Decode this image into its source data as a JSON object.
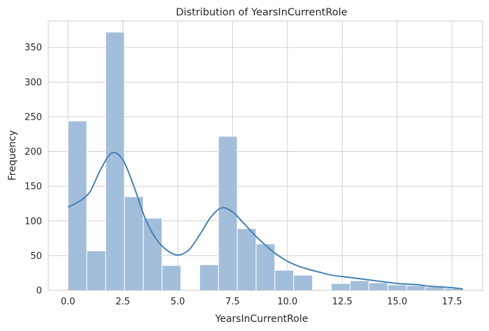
{
  "chart_data": {
    "type": "bar",
    "title": "Distribution of YearsInCurrentRole",
    "xlabel": "YearsInCurrentRole",
    "ylabel": "Frequency",
    "xlim": [
      -0.9,
      18.9
    ],
    "ylim": [
      0,
      388
    ],
    "xticks": [
      0.0,
      2.5,
      5.0,
      7.5,
      10.0,
      12.5,
      15.0,
      17.5
    ],
    "xtick_labels": [
      "0.0",
      "2.5",
      "5.0",
      "7.5",
      "10.0",
      "12.5",
      "15.0",
      "17.5"
    ],
    "yticks": [
      0,
      50,
      100,
      150,
      200,
      250,
      300,
      350
    ],
    "ytick_labels": [
      "0",
      "50",
      "100",
      "150",
      "200",
      "250",
      "300",
      "350"
    ],
    "grid": true,
    "bin_width": 0.857,
    "bins": [
      {
        "x0": 0.0,
        "count": 244
      },
      {
        "x0": 0.857,
        "count": 57
      },
      {
        "x0": 1.714,
        "count": 372
      },
      {
        "x0": 2.571,
        "count": 135
      },
      {
        "x0": 3.429,
        "count": 104
      },
      {
        "x0": 4.286,
        "count": 36
      },
      {
        "x0": 5.143,
        "count": 0
      },
      {
        "x0": 6.0,
        "count": 37
      },
      {
        "x0": 6.857,
        "count": 222
      },
      {
        "x0": 7.714,
        "count": 89
      },
      {
        "x0": 8.571,
        "count": 67
      },
      {
        "x0": 9.429,
        "count": 29
      },
      {
        "x0": 10.286,
        "count": 22
      },
      {
        "x0": 11.143,
        "count": 0
      },
      {
        "x0": 12.0,
        "count": 10
      },
      {
        "x0": 12.857,
        "count": 14
      },
      {
        "x0": 13.714,
        "count": 11
      },
      {
        "x0": 14.571,
        "count": 8
      },
      {
        "x0": 15.429,
        "count": 7
      },
      {
        "x0": 16.286,
        "count": 5
      },
      {
        "x0": 17.143,
        "count": 3
      }
    ],
    "kde": {
      "x": [
        0.0,
        0.5,
        1.0,
        1.5,
        2.0,
        2.5,
        3.0,
        3.5,
        4.0,
        4.5,
        5.0,
        5.5,
        6.0,
        6.5,
        7.0,
        7.5,
        8.0,
        8.5,
        9.0,
        9.5,
        10.0,
        10.5,
        11.0,
        11.5,
        12.0,
        12.5,
        13.0,
        13.5,
        14.0,
        14.5,
        15.0,
        15.5,
        16.0,
        16.5,
        17.0,
        17.5,
        18.0
      ],
      "y": [
        120,
        128,
        142,
        175,
        198,
        188,
        150,
        105,
        75,
        58,
        51,
        58,
        80,
        105,
        119,
        113,
        97,
        80,
        65,
        52,
        42,
        35,
        30,
        26,
        22,
        20,
        18,
        16,
        14,
        12,
        10,
        9,
        8,
        6,
        5,
        4,
        2
      ]
    },
    "colors": {
      "bar_fill": "#a3bedb",
      "bar_edge": "#ffffff",
      "kde_line": "#4682b4",
      "grid": "#d0d0d0",
      "axes_edge": "#cccccc"
    }
  }
}
